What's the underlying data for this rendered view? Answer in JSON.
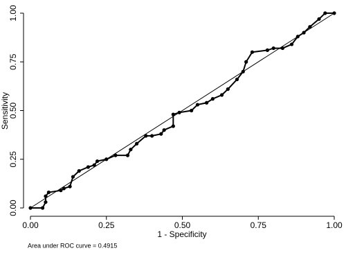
{
  "chart_data": {
    "type": "line",
    "xlabel": "1 - Specificity",
    "ylabel": "Sensitivity",
    "annotation": "Area under ROC curve = 0.4915",
    "xlim": [
      0,
      1
    ],
    "ylim": [
      0,
      1
    ],
    "xticks": [
      {
        "value": 0,
        "label": "0.00"
      },
      {
        "value": 0.25,
        "label": "0.25"
      },
      {
        "value": 0.5,
        "label": "0.50"
      },
      {
        "value": 0.75,
        "label": "0.75"
      },
      {
        "value": 1,
        "label": "1.00"
      }
    ],
    "yticks": [
      {
        "value": 0,
        "label": "0.00"
      },
      {
        "value": 0.25,
        "label": "0.25"
      },
      {
        "value": 0.5,
        "label": "0.50"
      },
      {
        "value": 0.75,
        "label": "0.75"
      },
      {
        "value": 1,
        "label": "1.00"
      }
    ],
    "x": [
      0,
      0.04,
      0.05,
      0.05,
      0.06,
      0.1,
      0.11,
      0.13,
      0.14,
      0.16,
      0.19,
      0.21,
      0.22,
      0.25,
      0.28,
      0.32,
      0.33,
      0.35,
      0.38,
      0.4,
      0.43,
      0.44,
      0.47,
      0.47,
      0.49,
      0.53,
      0.55,
      0.58,
      0.6,
      0.63,
      0.65,
      0.68,
      0.7,
      0.71,
      0.73,
      0.78,
      0.8,
      0.83,
      0.86,
      0.88,
      0.9,
      0.92,
      0.95,
      0.97,
      1
    ],
    "series": [
      {
        "color": "#000000",
        "values": [
          0,
          0,
          0.03,
          0.06,
          0.08,
          0.09,
          0.1,
          0.11,
          0.16,
          0.19,
          0.21,
          0.22,
          0.24,
          0.25,
          0.27,
          0.27,
          0.3,
          0.33,
          0.37,
          0.37,
          0.38,
          0.4,
          0.42,
          0.48,
          0.49,
          0.5,
          0.53,
          0.54,
          0.56,
          0.58,
          0.61,
          0.66,
          0.7,
          0.75,
          0.8,
          0.81,
          0.82,
          0.82,
          0.84,
          0.88,
          0.9,
          0.93,
          0.97,
          1,
          1
        ]
      }
    ],
    "reference_line": {
      "x": [
        0,
        1
      ],
      "y": [
        0,
        1
      ],
      "color": "#000000"
    }
  }
}
